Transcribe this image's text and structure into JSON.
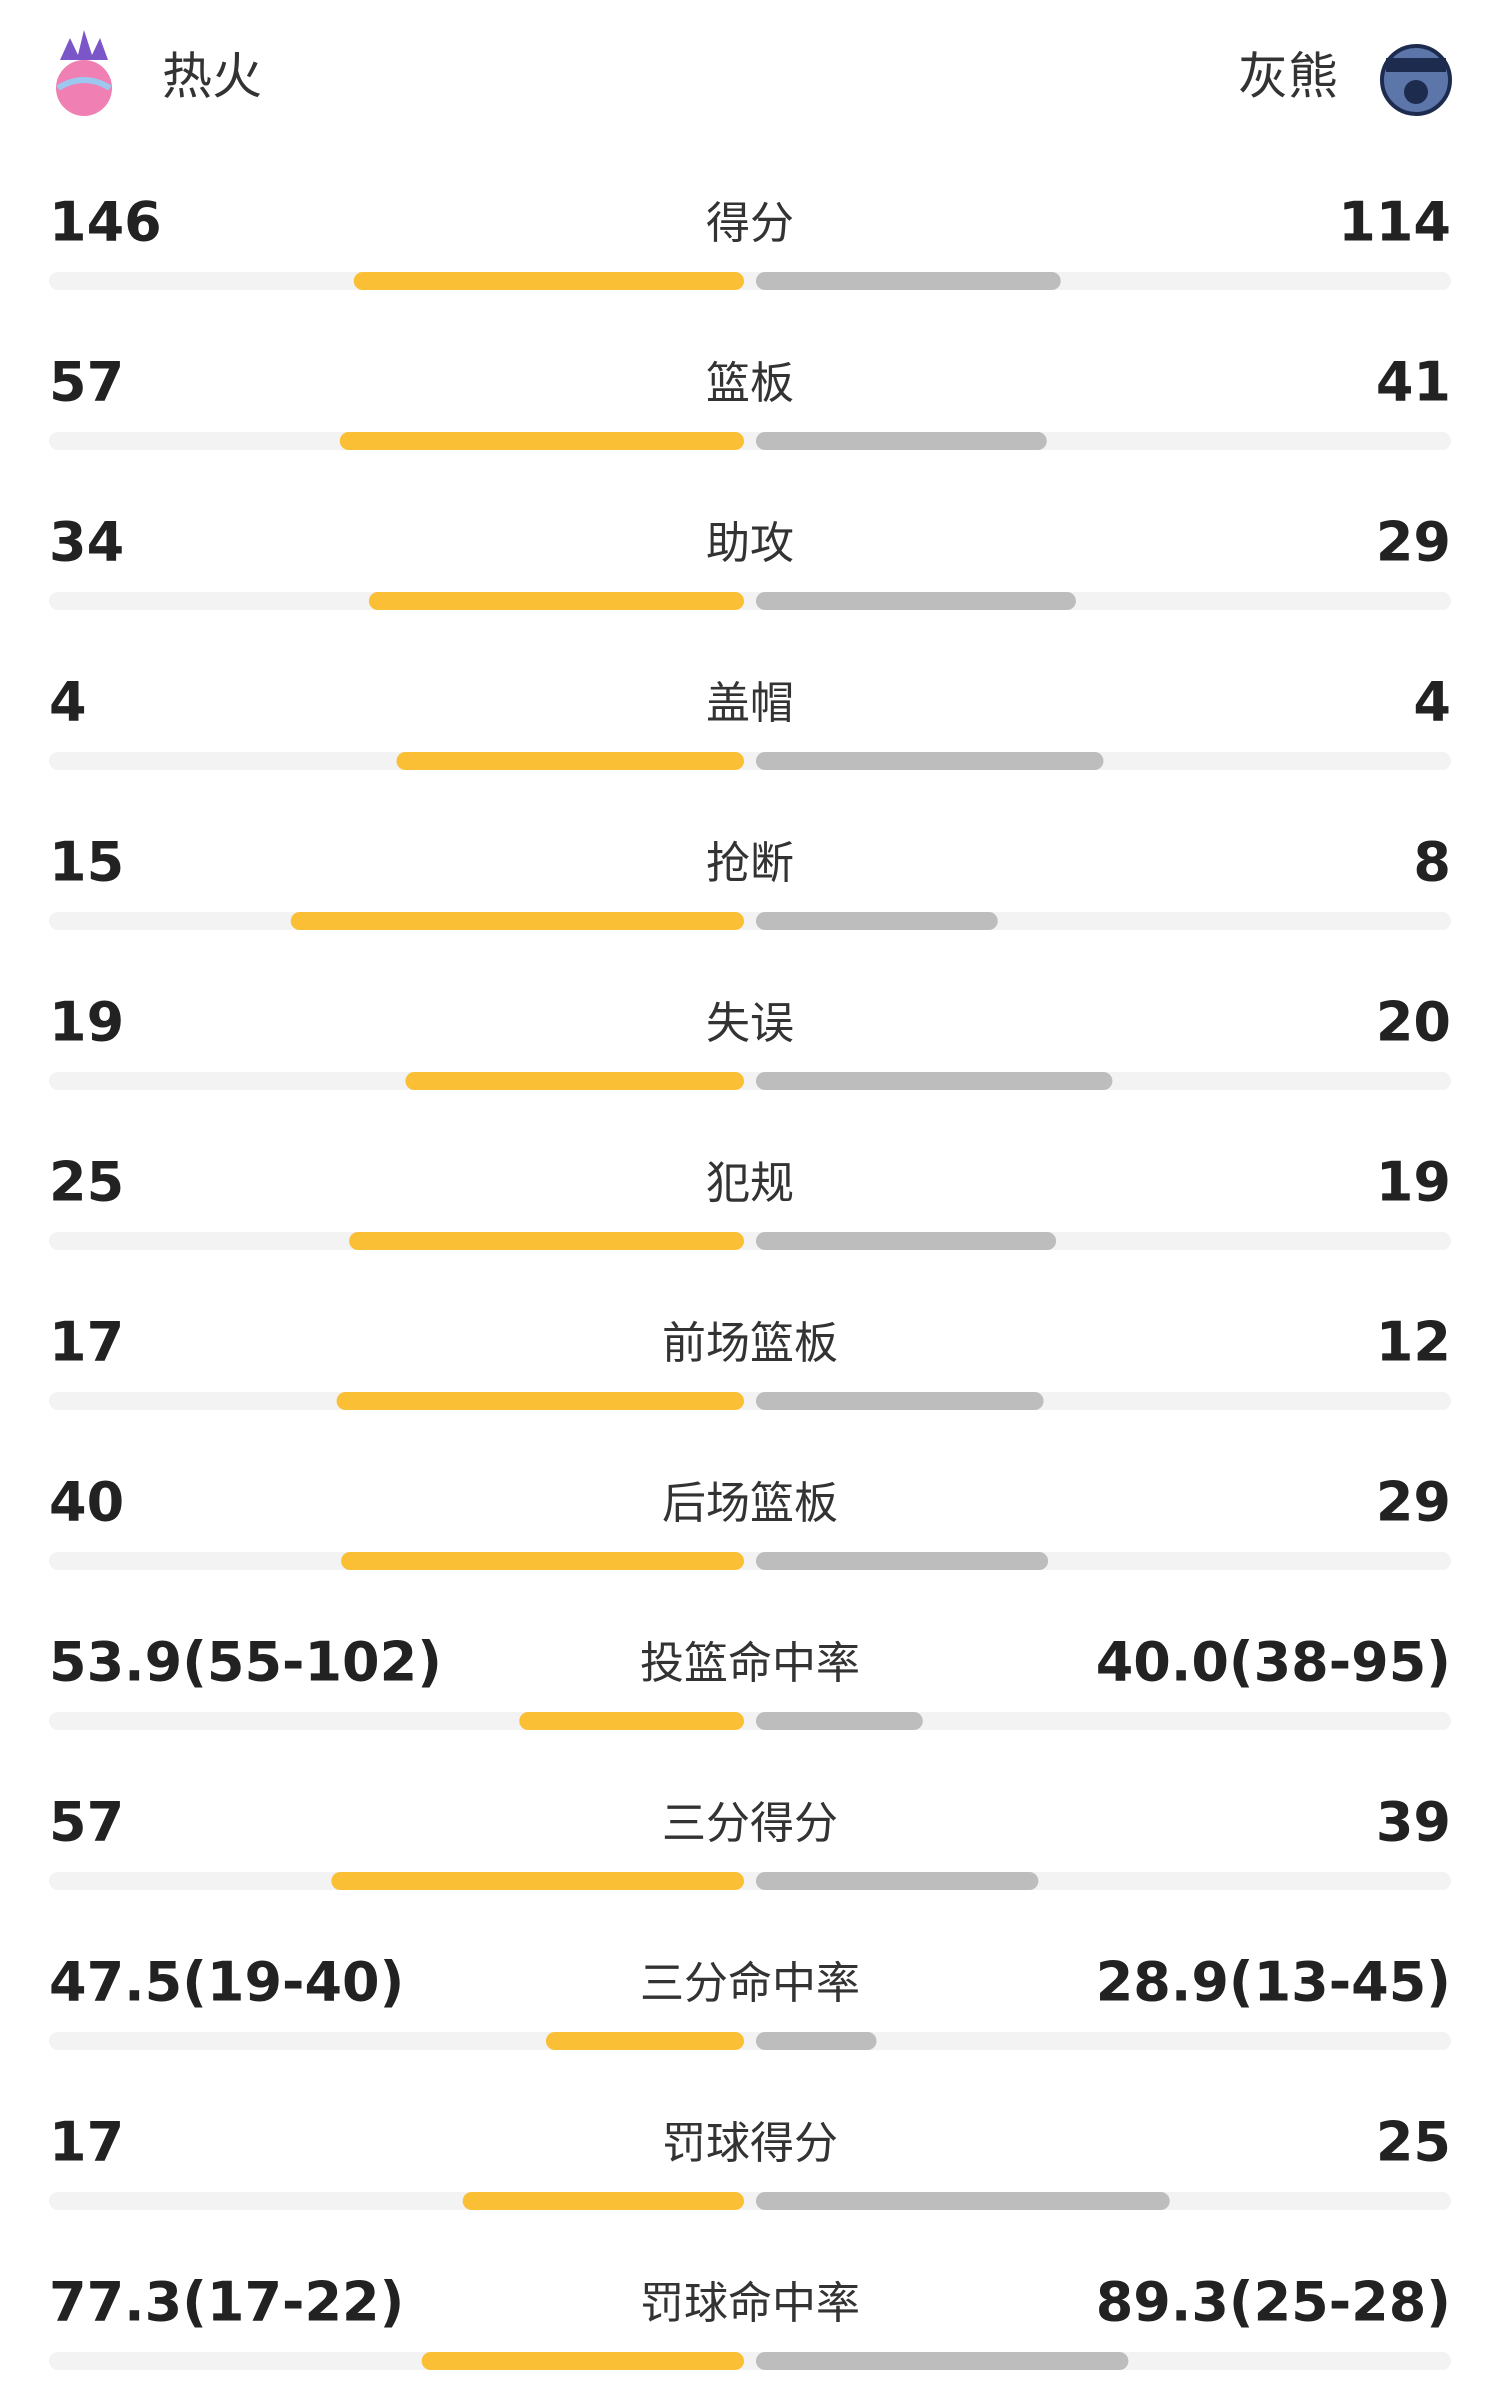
{
  "header": {
    "home_team": "热火",
    "away_team": "灰熊"
  },
  "rows": [
    {
      "label": "得分",
      "home": 146,
      "away": 114
    },
    {
      "label": "篮板",
      "home": 57,
      "away": 41
    },
    {
      "label": "助攻",
      "home": 34,
      "away": 29
    },
    {
      "label": "盖帽",
      "home": 4,
      "away": 4
    },
    {
      "label": "抢断",
      "home": 15,
      "away": 8
    },
    {
      "label": "失误",
      "home": 19,
      "away": 20
    },
    {
      "label": "犯规",
      "home": 25,
      "away": 19
    },
    {
      "label": "前场篮板",
      "home": 17,
      "away": 12
    },
    {
      "label": "后场篮板",
      "home": 40,
      "away": 29
    },
    {
      "label": "投篮命中率",
      "home": {
        "value": 53.9,
        "label": "53.9(55-102)"
      },
      "away": {
        "value": 40.0,
        "label": "40.0(38-95)"
      }
    },
    {
      "label": "三分得分",
      "home": 57,
      "away": 39
    },
    {
      "label": "三分命中率",
      "home": {
        "value": 47.5,
        "label": "47.5(19-40)"
      },
      "away": {
        "value": 28.9,
        "label": "28.9(13-45)"
      }
    },
    {
      "label": "罚球得分",
      "home": 17,
      "away": 25
    },
    {
      "label": "罚球命中率",
      "home": {
        "value": 77.3,
        "label": "77.3(17-22)"
      },
      "away": {
        "value": 89.3,
        "label": "89.3(25-28)"
      }
    }
  ]
}
